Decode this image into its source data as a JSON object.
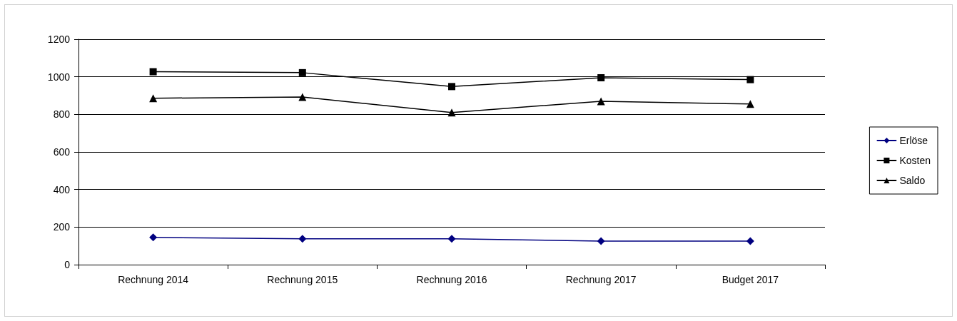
{
  "chart_data": {
    "type": "line",
    "categories": [
      "Rechnung 2014",
      "Rechnung 2015",
      "Rechnung 2016",
      "Rechnung 2017",
      "Budget 2017"
    ],
    "series": [
      {
        "name": "Erlöse",
        "color": "#000080",
        "marker": "diamond",
        "values": [
          145,
          138,
          138,
          125,
          125
        ]
      },
      {
        "name": "Kosten",
        "color": "#000000",
        "marker": "square",
        "values": [
          1027,
          1022,
          948,
          995,
          985
        ]
      },
      {
        "name": "Saldo",
        "color": "#000000",
        "marker": "triangle",
        "values": [
          886,
          892,
          810,
          870,
          855
        ]
      }
    ],
    "ylim": [
      0,
      1200
    ],
    "yticks": [
      0,
      200,
      400,
      600,
      800,
      1000,
      1200
    ],
    "grid": "y",
    "legend": "right",
    "line_style": "solid"
  }
}
